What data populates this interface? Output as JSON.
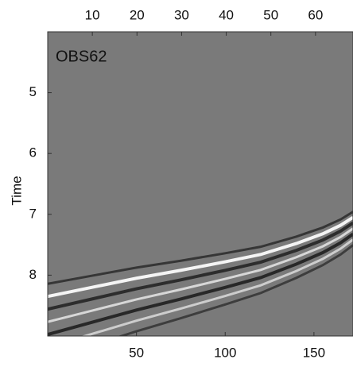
{
  "chart_data": {
    "type": "wavefield",
    "annotation": "OBS62",
    "ylabel": "Time",
    "background": "#7a7a7a",
    "ylim": [
      4,
      9
    ],
    "yticks": [
      5,
      6,
      7,
      8
    ],
    "y_reversed": true,
    "xlim": [
      0,
      172
    ],
    "xticks": [
      50,
      100,
      150
    ],
    "x2lim": [
      0,
      68.4
    ],
    "x2ticks": [
      10,
      20,
      30,
      40,
      50,
      60
    ],
    "x": [
      0,
      25,
      50,
      75,
      100,
      120,
      140,
      155,
      165,
      172
    ],
    "values": [
      8.35,
      8.2,
      8.05,
      7.92,
      7.78,
      7.66,
      7.48,
      7.32,
      7.18,
      7.05
    ]
  }
}
